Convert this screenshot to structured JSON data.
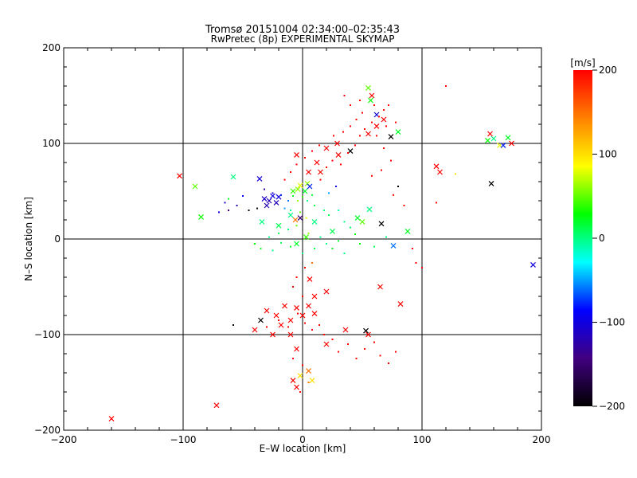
{
  "chart_data": {
    "type": "scatter",
    "title": "Tromsø 20151004 02:34:00–02:35:43",
    "subtitle": "RwPretec (8p) EXPERIMENTAL SKYMAP",
    "xlabel": "E–W location [km]",
    "ylabel": "N–S location [km]",
    "xlim": [
      -200,
      200
    ],
    "ylim": [
      -200,
      200
    ],
    "xticks": [
      -200,
      -100,
      0,
      100,
      200
    ],
    "yticks": [
      -200,
      -100,
      0,
      100,
      200
    ],
    "xtick_labels": [
      "−200",
      "−100",
      "0",
      "100",
      "200"
    ],
    "ytick_labels": [
      "−200",
      "−100",
      "0",
      "100",
      "200"
    ],
    "grid": true,
    "colorbar": {
      "label": "[m/s]",
      "min": -200,
      "max": 200,
      "ticks": [
        200,
        100,
        0,
        -100,
        -200
      ],
      "tick_labels": [
        "200",
        "100",
        "0",
        "−100",
        "−200"
      ],
      "stops": [
        "#ff0000",
        "#ff8000",
        "#ffff00",
        "#00ff00",
        "#00ffff",
        "#0000ff",
        "#400080",
        "#000000"
      ]
    },
    "series": [
      {
        "marker": "x",
        "points": [
          [
            -103,
            66,
            200
          ],
          [
            -160,
            -188,
            200
          ],
          [
            -72,
            -174,
            200
          ],
          [
            -58,
            65,
            0
          ],
          [
            -90,
            55,
            50
          ],
          [
            -85,
            23,
            30
          ],
          [
            -36,
            63,
            -100
          ],
          [
            -32,
            42,
            -110
          ],
          [
            -28,
            40,
            -120
          ],
          [
            -25,
            45,
            -100
          ],
          [
            -22,
            38,
            -115
          ],
          [
            -30,
            35,
            -120
          ],
          [
            -20,
            44,
            -100
          ],
          [
            -8,
            50,
            40
          ],
          [
            -4,
            52,
            60
          ],
          [
            -2,
            56,
            80
          ],
          [
            2,
            50,
            20
          ],
          [
            4,
            58,
            60
          ],
          [
            6,
            55,
            -80
          ],
          [
            -6,
            20,
            150
          ],
          [
            -10,
            25,
            0
          ],
          [
            -20,
            14,
            10
          ],
          [
            -34,
            18,
            0
          ],
          [
            -2,
            22,
            -150
          ],
          [
            10,
            18,
            0
          ],
          [
            3,
            2,
            40
          ],
          [
            -5,
            -5,
            20
          ],
          [
            25,
            8,
            10
          ],
          [
            46,
            22,
            20
          ],
          [
            50,
            18,
            50
          ],
          [
            56,
            31,
            0
          ],
          [
            66,
            16,
            -200
          ],
          [
            88,
            8,
            20
          ],
          [
            76,
            -7,
            -60
          ],
          [
            112,
            76,
            200
          ],
          [
            115,
            70,
            200
          ],
          [
            55,
            158,
            50
          ],
          [
            57,
            145,
            30
          ],
          [
            62,
            130,
            -100
          ],
          [
            68,
            125,
            200
          ],
          [
            74,
            107,
            -200
          ],
          [
            80,
            112,
            20
          ],
          [
            155,
            103,
            30
          ],
          [
            157,
            110,
            200
          ],
          [
            160,
            105,
            0
          ],
          [
            165,
            98,
            80
          ],
          [
            168,
            98,
            -80
          ],
          [
            172,
            106,
            20
          ],
          [
            175,
            100,
            200
          ],
          [
            158,
            58,
            -200
          ],
          [
            193,
            -27,
            -100
          ],
          [
            -30,
            -75,
            200
          ],
          [
            -22,
            -80,
            200
          ],
          [
            -15,
            -70,
            200
          ],
          [
            -10,
            -85,
            200
          ],
          [
            -18,
            -90,
            200
          ],
          [
            -5,
            -72,
            200
          ],
          [
            0,
            -80,
            200
          ],
          [
            5,
            -70,
            200
          ],
          [
            10,
            -78,
            200
          ],
          [
            -35,
            -85,
            -200
          ],
          [
            -40,
            -95,
            200
          ],
          [
            -25,
            -100,
            200
          ],
          [
            -10,
            -100,
            200
          ],
          [
            -5,
            -115,
            200
          ],
          [
            -8,
            -148,
            200
          ],
          [
            -2,
            -143,
            100
          ],
          [
            5,
            -138,
            150
          ],
          [
            8,
            -148,
            100
          ],
          [
            -5,
            -155,
            200
          ],
          [
            20,
            -110,
            200
          ],
          [
            36,
            -95,
            200
          ],
          [
            53,
            -96,
            -200
          ],
          [
            55,
            -100,
            200
          ],
          [
            65,
            -50,
            200
          ],
          [
            82,
            -68,
            200
          ],
          [
            6,
            -42,
            200
          ],
          [
            20,
            -55,
            200
          ],
          [
            10,
            -60,
            200
          ],
          [
            40,
            92,
            -200
          ],
          [
            29,
            100,
            200
          ],
          [
            20,
            95,
            200
          ],
          [
            12,
            80,
            200
          ],
          [
            5,
            70,
            200
          ],
          [
            -5,
            88,
            200
          ],
          [
            15,
            70,
            200
          ],
          [
            30,
            88,
            200
          ],
          [
            58,
            150,
            200
          ],
          [
            62,
            118,
            200
          ],
          [
            55,
            110,
            200
          ]
        ]
      },
      {
        "marker": "dot",
        "points": [
          [
            -62,
            42,
            20
          ],
          [
            -70,
            28,
            -100
          ],
          [
            -55,
            35,
            -120
          ],
          [
            -45,
            30,
            -200
          ],
          [
            -65,
            38,
            -110
          ],
          [
            -50,
            45,
            -90
          ],
          [
            -38,
            32,
            -200
          ],
          [
            -15,
            32,
            -50
          ],
          [
            -32,
            52,
            -130
          ],
          [
            -25,
            48,
            -100
          ],
          [
            -18,
            46,
            -80
          ],
          [
            -12,
            40,
            -60
          ],
          [
            -8,
            45,
            20
          ],
          [
            -4,
            40,
            60
          ],
          [
            0,
            44,
            40
          ],
          [
            4,
            40,
            0
          ],
          [
            8,
            46,
            20
          ],
          [
            10,
            35,
            10
          ],
          [
            -10,
            30,
            0
          ],
          [
            -2,
            28,
            50
          ],
          [
            3,
            22,
            80
          ],
          [
            18,
            30,
            0
          ],
          [
            22,
            25,
            10
          ],
          [
            30,
            30,
            -10
          ],
          [
            35,
            18,
            0
          ],
          [
            40,
            12,
            10
          ],
          [
            44,
            5,
            30
          ],
          [
            30,
            -2,
            20
          ],
          [
            20,
            -5,
            0
          ],
          [
            10,
            -10,
            10
          ],
          [
            0,
            -15,
            0
          ],
          [
            -10,
            -8,
            20
          ],
          [
            -18,
            -4,
            10
          ],
          [
            -25,
            -12,
            0
          ],
          [
            -35,
            -10,
            20
          ],
          [
            -40,
            -5,
            30
          ],
          [
            -28,
            2,
            0
          ],
          [
            -20,
            6,
            10
          ],
          [
            -12,
            10,
            0
          ],
          [
            -5,
            14,
            50
          ],
          [
            5,
            6,
            60
          ],
          [
            15,
            2,
            0
          ],
          [
            25,
            -10,
            20
          ],
          [
            35,
            -15,
            0
          ],
          [
            48,
            -5,
            30
          ],
          [
            60,
            -8,
            10
          ],
          [
            70,
            2,
            0
          ],
          [
            22,
            48,
            -50
          ],
          [
            28,
            55,
            -100
          ],
          [
            15,
            62,
            200
          ],
          [
            20,
            75,
            200
          ],
          [
            25,
            82,
            200
          ],
          [
            32,
            78,
            200
          ],
          [
            38,
            90,
            200
          ],
          [
            44,
            98,
            200
          ],
          [
            48,
            108,
            200
          ],
          [
            52,
            115,
            200
          ],
          [
            58,
            122,
            200
          ],
          [
            64,
            128,
            200
          ],
          [
            68,
            135,
            200
          ],
          [
            72,
            140,
            200
          ],
          [
            60,
            140,
            200
          ],
          [
            50,
            132,
            200
          ],
          [
            45,
            125,
            200
          ],
          [
            40,
            140,
            200
          ],
          [
            35,
            150,
            200
          ],
          [
            48,
            145,
            200
          ],
          [
            70,
            118,
            200
          ],
          [
            78,
            122,
            200
          ],
          [
            62,
            108,
            200
          ],
          [
            68,
            95,
            200
          ],
          [
            74,
            82,
            200
          ],
          [
            66,
            72,
            200
          ],
          [
            58,
            66,
            200
          ],
          [
            80,
            55,
            -200
          ],
          [
            76,
            46,
            200
          ],
          [
            85,
            35,
            200
          ],
          [
            92,
            -10,
            200
          ],
          [
            95,
            -25,
            200
          ],
          [
            100,
            -30,
            200
          ],
          [
            120,
            160,
            200
          ],
          [
            128,
            68,
            100
          ],
          [
            112,
            38,
            200
          ],
          [
            -62,
            30,
            -150
          ],
          [
            -58,
            -90,
            -200
          ],
          [
            -30,
            -92,
            200
          ],
          [
            -20,
            -85,
            200
          ],
          [
            -12,
            -92,
            200
          ],
          [
            -4,
            -78,
            200
          ],
          [
            2,
            -88,
            200
          ],
          [
            8,
            -95,
            200
          ],
          [
            14,
            -90,
            200
          ],
          [
            18,
            -100,
            200
          ],
          [
            25,
            -105,
            200
          ],
          [
            30,
            -118,
            200
          ],
          [
            38,
            -110,
            200
          ],
          [
            45,
            -125,
            200
          ],
          [
            52,
            -115,
            200
          ],
          [
            60,
            -108,
            200
          ],
          [
            65,
            -122,
            200
          ],
          [
            72,
            -130,
            200
          ],
          [
            78,
            -118,
            200
          ],
          [
            -8,
            -125,
            200
          ],
          [
            0,
            -132,
            200
          ],
          [
            5,
            -150,
            150
          ],
          [
            -2,
            -160,
            200
          ],
          [
            0,
            -60,
            200
          ],
          [
            -5,
            -40,
            200
          ],
          [
            2,
            -30,
            200
          ],
          [
            8,
            -25,
            150
          ],
          [
            -8,
            -50,
            200
          ],
          [
            -15,
            62,
            200
          ],
          [
            -10,
            70,
            200
          ],
          [
            -5,
            78,
            200
          ],
          [
            2,
            85,
            200
          ],
          [
            8,
            92,
            200
          ],
          [
            14,
            98,
            200
          ],
          [
            26,
            108,
            200
          ],
          [
            34,
            112,
            200
          ],
          [
            40,
            118,
            200
          ]
        ]
      }
    ]
  }
}
